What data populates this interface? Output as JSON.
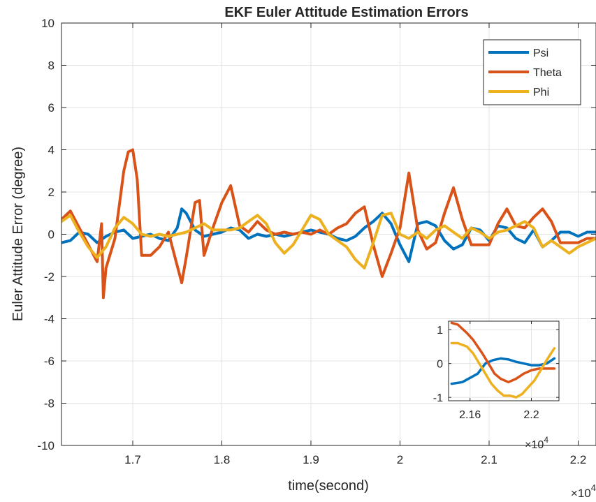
{
  "chart_data": [
    {
      "type": "line",
      "title": "EKF Euler Attitude Estimation Errors",
      "xlabel": "time(second)",
      "ylabel": "Euler Attitude Error (degree)",
      "x_exponent_label": "×10",
      "x_exponent_power": "4",
      "xlim": [
        1.62,
        2.22
      ],
      "ylim": [
        -10,
        10
      ],
      "x_ticks": [
        1.7,
        1.8,
        1.9,
        2.0,
        2.1,
        2.2
      ],
      "x_tick_labels": [
        "1.7",
        "1.8",
        "1.9",
        "2",
        "2.1",
        "2.2"
      ],
      "y_ticks": [
        -10,
        -8,
        -6,
        -4,
        -2,
        0,
        2,
        4,
        6,
        8,
        10
      ],
      "y_tick_labels": [
        "-10",
        "-8",
        "-6",
        "-4",
        "-2",
        "0",
        "2",
        "4",
        "6",
        "8",
        "10"
      ],
      "grid": true,
      "legend_position": "top-right",
      "series": [
        {
          "name": "Psi",
          "color": "#0072BD",
          "x": [
            1.62,
            1.63,
            1.64,
            1.65,
            1.66,
            1.67,
            1.68,
            1.69,
            1.7,
            1.71,
            1.72,
            1.73,
            1.74,
            1.75,
            1.755,
            1.76,
            1.77,
            1.78,
            1.79,
            1.8,
            1.81,
            1.82,
            1.83,
            1.84,
            1.85,
            1.86,
            1.87,
            1.88,
            1.89,
            1.9,
            1.91,
            1.92,
            1.93,
            1.94,
            1.95,
            1.96,
            1.97,
            1.98,
            1.99,
            2.0,
            2.01,
            2.02,
            2.03,
            2.04,
            2.05,
            2.06,
            2.07,
            2.08,
            2.09,
            2.1,
            2.11,
            2.12,
            2.13,
            2.14,
            2.15,
            2.16,
            2.17,
            2.18,
            2.19,
            2.2,
            2.21,
            2.22
          ],
          "values": [
            -0.4,
            -0.3,
            0.1,
            0.0,
            -0.4,
            -0.1,
            0.1,
            0.2,
            -0.2,
            -0.1,
            0.0,
            -0.2,
            -0.3,
            0.3,
            1.2,
            1.0,
            0.2,
            -0.1,
            0.0,
            0.1,
            0.3,
            0.2,
            -0.2,
            0.0,
            -0.1,
            0.0,
            -0.1,
            0.0,
            0.1,
            0.2,
            0.1,
            0.0,
            -0.2,
            -0.3,
            -0.1,
            0.3,
            0.6,
            1.0,
            0.5,
            -0.5,
            -1.3,
            0.5,
            0.6,
            0.4,
            -0.3,
            -0.7,
            -0.5,
            0.3,
            0.2,
            -0.3,
            0.4,
            0.3,
            -0.2,
            -0.4,
            0.2,
            -0.6,
            -0.3,
            0.1,
            0.1,
            -0.1,
            0.1,
            0.1
          ]
        },
        {
          "name": "Theta",
          "color": "#D95319",
          "x": [
            1.62,
            1.63,
            1.64,
            1.65,
            1.66,
            1.665,
            1.667,
            1.67,
            1.68,
            1.69,
            1.695,
            1.7,
            1.705,
            1.71,
            1.72,
            1.73,
            1.74,
            1.75,
            1.755,
            1.76,
            1.77,
            1.775,
            1.78,
            1.79,
            1.8,
            1.81,
            1.82,
            1.83,
            1.84,
            1.85,
            1.86,
            1.87,
            1.88,
            1.89,
            1.9,
            1.91,
            1.92,
            1.93,
            1.94,
            1.95,
            1.96,
            1.97,
            1.98,
            1.99,
            2.0,
            2.01,
            2.02,
            2.03,
            2.04,
            2.05,
            2.06,
            2.07,
            2.08,
            2.09,
            2.1,
            2.11,
            2.12,
            2.13,
            2.14,
            2.15,
            2.16,
            2.17,
            2.18,
            2.19,
            2.2,
            2.21,
            2.22
          ],
          "values": [
            0.7,
            1.1,
            0.3,
            -0.5,
            -1.3,
            0.5,
            -3.0,
            -1.6,
            -0.2,
            3.0,
            3.9,
            4.0,
            2.6,
            -1.0,
            -1.0,
            -0.6,
            0.1,
            -1.5,
            -2.3,
            -1.1,
            1.5,
            1.6,
            -1.0,
            0.3,
            1.5,
            2.3,
            0.4,
            0.1,
            0.6,
            0.2,
            0.0,
            0.1,
            0.0,
            0.1,
            0.0,
            0.2,
            0.0,
            0.3,
            0.5,
            1.0,
            1.3,
            -0.5,
            -2.0,
            -0.9,
            0.3,
            2.9,
            0.2,
            -0.7,
            -0.4,
            1.0,
            2.2,
            0.7,
            -0.5,
            -0.5,
            -0.5,
            0.5,
            1.2,
            0.4,
            0.3,
            0.8,
            1.2,
            0.6,
            -0.4,
            -0.4,
            -0.4,
            -0.2,
            -0.2
          ]
        },
        {
          "name": "Phi",
          "color": "#EDB120",
          "x": [
            1.62,
            1.63,
            1.64,
            1.65,
            1.66,
            1.67,
            1.68,
            1.69,
            1.7,
            1.71,
            1.72,
            1.73,
            1.74,
            1.75,
            1.76,
            1.77,
            1.78,
            1.79,
            1.8,
            1.81,
            1.82,
            1.83,
            1.84,
            1.85,
            1.86,
            1.87,
            1.88,
            1.89,
            1.9,
            1.91,
            1.92,
            1.93,
            1.94,
            1.95,
            1.96,
            1.97,
            1.98,
            1.99,
            2.0,
            2.01,
            2.02,
            2.03,
            2.04,
            2.05,
            2.06,
            2.07,
            2.08,
            2.09,
            2.1,
            2.11,
            2.12,
            2.13,
            2.14,
            2.15,
            2.16,
            2.17,
            2.18,
            2.19,
            2.2,
            2.21,
            2.22
          ],
          "values": [
            0.6,
            0.9,
            0.1,
            -0.6,
            -1.1,
            -0.6,
            0.3,
            0.8,
            0.5,
            0.0,
            -0.1,
            0.0,
            -0.1,
            0.0,
            0.1,
            0.3,
            0.5,
            0.2,
            0.2,
            0.2,
            0.3,
            0.6,
            0.9,
            0.5,
            -0.4,
            -0.9,
            -0.5,
            0.2,
            0.9,
            0.7,
            0.0,
            -0.3,
            -0.6,
            -1.2,
            -1.6,
            -0.4,
            0.9,
            1.0,
            0.0,
            -0.2,
            0.1,
            -0.2,
            0.2,
            0.4,
            0.1,
            -0.2,
            0.3,
            0.1,
            -0.2,
            0.1,
            0.2,
            0.4,
            0.6,
            0.3,
            -0.6,
            -0.3,
            -0.6,
            -0.9,
            -0.6,
            -0.4,
            -0.2
          ]
        }
      ]
    },
    {
      "type": "line",
      "title": "",
      "xlabel": "",
      "ylabel": "",
      "x_exponent_label": "×10",
      "x_exponent_power": "4",
      "xlim": [
        2.146,
        2.218
      ],
      "ylim": [
        -1.1,
        1.25
      ],
      "x_ticks": [
        2.16,
        2.2
      ],
      "x_tick_labels": [
        "2.16",
        "2.2"
      ],
      "y_ticks": [
        -1,
        0,
        1
      ],
      "y_tick_labels": [
        "-1",
        "0",
        "1"
      ],
      "grid": true,
      "legend_position": "",
      "series": [
        {
          "name": "Psi",
          "color": "#0072BD",
          "x": [
            2.148,
            2.155,
            2.165,
            2.17,
            2.175,
            2.18,
            2.185,
            2.19,
            2.195,
            2.2,
            2.205,
            2.21,
            2.215
          ],
          "values": [
            -0.6,
            -0.55,
            -0.3,
            0.0,
            0.1,
            0.15,
            0.12,
            0.05,
            0.0,
            -0.05,
            -0.05,
            0.0,
            0.15
          ]
        },
        {
          "name": "Theta",
          "color": "#D95319",
          "x": [
            2.148,
            2.152,
            2.158,
            2.162,
            2.165,
            2.168,
            2.172,
            2.176,
            2.18,
            2.185,
            2.19,
            2.195,
            2.2,
            2.205,
            2.21,
            2.215
          ],
          "values": [
            1.2,
            1.15,
            0.9,
            0.7,
            0.5,
            0.3,
            0.0,
            -0.3,
            -0.45,
            -0.55,
            -0.45,
            -0.3,
            -0.2,
            -0.15,
            -0.15,
            -0.15
          ]
        },
        {
          "name": "Phi",
          "color": "#EDB120",
          "x": [
            2.148,
            2.152,
            2.158,
            2.162,
            2.166,
            2.17,
            2.174,
            2.178,
            2.182,
            2.186,
            2.19,
            2.194,
            2.198,
            2.202,
            2.206,
            2.21,
            2.215
          ],
          "values": [
            0.6,
            0.6,
            0.5,
            0.3,
            0.0,
            -0.3,
            -0.6,
            -0.8,
            -0.95,
            -0.95,
            -1.0,
            -0.9,
            -0.7,
            -0.5,
            -0.2,
            0.1,
            0.45
          ]
        }
      ]
    }
  ]
}
